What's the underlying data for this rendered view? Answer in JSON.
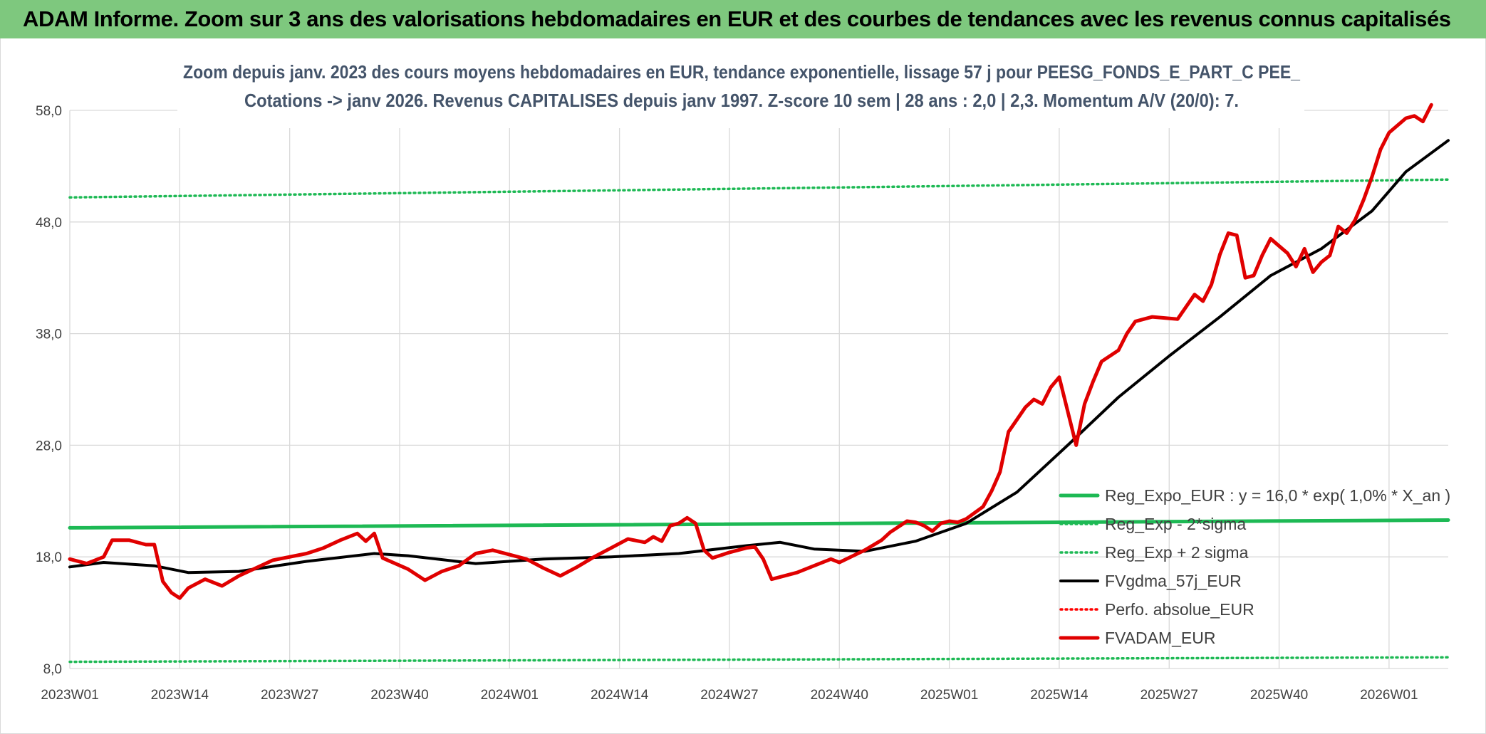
{
  "header": {
    "title": "ADAM Informe. Zoom sur 3 ans des valorisations hebdomadaires en EUR et des courbes de tendances avec les revenus connus capitalisés"
  },
  "chart_data": {
    "type": "line",
    "title_lines": [
      "Zoom depuis janv. 2023 des cours moyens hebdomadaires en EUR, tendance exponentielle, lissage 57 j pour PEESG_FONDS_E_PART_C PEE_",
      "Cotations -> janv 2026. Revenus CAPITALISES depuis janv 1997. Z-score 10 sem | 28 ans : 2,0 | 2,3. Momentum A/V (20/0): 7."
    ],
    "xlabel": "",
    "ylabel": "",
    "ylim": [
      8,
      58
    ],
    "y_ticks": [
      "8,0",
      "18,0",
      "28,0",
      "38,0",
      "48,0",
      "58,0"
    ],
    "x_ticks": [
      "2023W01",
      "2023W14",
      "2023W27",
      "2023W40",
      "2024W01",
      "2024W14",
      "2024W27",
      "2024W40",
      "2025W01",
      "2025W14",
      "2025W27",
      "2025W40",
      "2026W01"
    ],
    "x_count": 164,
    "grid": true,
    "legend_position": "right",
    "series": [
      {
        "name": "Reg_Expo_EUR : y = 16,0 * exp( 1,0% *  X_an )",
        "color": "#1db954",
        "style": "solid-thick",
        "values": [
          [
            0,
            20.6
          ],
          [
            163,
            21.3
          ]
        ]
      },
      {
        "name": "Reg_Exp - 2*sigma",
        "color": "#1db954",
        "style": "dotted",
        "values": [
          [
            0,
            8.6
          ],
          [
            163,
            9.0
          ]
        ]
      },
      {
        "name": "Reg_Exp + 2 sigma",
        "color": "#1db954",
        "style": "dotted",
        "values": [
          [
            0,
            50.2
          ],
          [
            163,
            51.8
          ]
        ]
      },
      {
        "name": "FVgdma_57j_EUR",
        "color": "#000000",
        "style": "solid",
        "values": [
          [
            0,
            17.1
          ],
          [
            4,
            17.5
          ],
          [
            10,
            17.2
          ],
          [
            14,
            16.6
          ],
          [
            20,
            16.7
          ],
          [
            28,
            17.6
          ],
          [
            36,
            18.3
          ],
          [
            40,
            18.1
          ],
          [
            48,
            17.4
          ],
          [
            56,
            17.8
          ],
          [
            64,
            18.0
          ],
          [
            72,
            18.3
          ],
          [
            80,
            19.0
          ],
          [
            84,
            19.3
          ],
          [
            88,
            18.7
          ],
          [
            94,
            18.5
          ],
          [
            100,
            19.4
          ],
          [
            106,
            21.0
          ],
          [
            112,
            23.8
          ],
          [
            118,
            28.0
          ],
          [
            124,
            32.3
          ],
          [
            130,
            36.0
          ],
          [
            136,
            39.5
          ],
          [
            142,
            43.2
          ],
          [
            148,
            45.6
          ],
          [
            154,
            49.0
          ],
          [
            158,
            52.5
          ],
          [
            163,
            55.3
          ]
        ]
      },
      {
        "name": "Perfo. absolue_EUR",
        "color": "#ff0000",
        "style": "dotted",
        "values": []
      },
      {
        "name": "FVADAM_EUR",
        "color": "#e00000",
        "style": "solid-thick",
        "values": [
          [
            0,
            17.8
          ],
          [
            2,
            17.4
          ],
          [
            4,
            18.0
          ],
          [
            5,
            19.5
          ],
          [
            7,
            19.5
          ],
          [
            9,
            19.1
          ],
          [
            10,
            19.1
          ],
          [
            11,
            15.8
          ],
          [
            12,
            14.8
          ],
          [
            13,
            14.3
          ],
          [
            14,
            15.2
          ],
          [
            16,
            16.0
          ],
          [
            18,
            15.4
          ],
          [
            20,
            16.3
          ],
          [
            22,
            17.0
          ],
          [
            24,
            17.7
          ],
          [
            28,
            18.3
          ],
          [
            30,
            18.8
          ],
          [
            32,
            19.5
          ],
          [
            34,
            20.1
          ],
          [
            35,
            19.4
          ],
          [
            36,
            20.1
          ],
          [
            37,
            17.9
          ],
          [
            40,
            16.9
          ],
          [
            42,
            15.9
          ],
          [
            44,
            16.7
          ],
          [
            46,
            17.2
          ],
          [
            48,
            18.3
          ],
          [
            50,
            18.6
          ],
          [
            52,
            18.2
          ],
          [
            54,
            17.8
          ],
          [
            56,
            17.0
          ],
          [
            58,
            16.3
          ],
          [
            60,
            17.1
          ],
          [
            62,
            18.0
          ],
          [
            64,
            18.8
          ],
          [
            66,
            19.6
          ],
          [
            68,
            19.3
          ],
          [
            69,
            19.8
          ],
          [
            70,
            19.4
          ],
          [
            71,
            20.8
          ],
          [
            72,
            21.0
          ],
          [
            73,
            21.5
          ],
          [
            74,
            21.0
          ],
          [
            75,
            18.6
          ],
          [
            76,
            17.9
          ],
          [
            78,
            18.4
          ],
          [
            80,
            18.8
          ],
          [
            81,
            18.9
          ],
          [
            82,
            17.8
          ],
          [
            83,
            16.0
          ],
          [
            86,
            16.6
          ],
          [
            88,
            17.2
          ],
          [
            90,
            17.8
          ],
          [
            91,
            17.5
          ],
          [
            94,
            18.6
          ],
          [
            96,
            19.5
          ],
          [
            97,
            20.2
          ],
          [
            99,
            21.2
          ],
          [
            100,
            21.1
          ],
          [
            101,
            20.8
          ],
          [
            102,
            20.3
          ],
          [
            103,
            21.0
          ],
          [
            104,
            21.2
          ],
          [
            105,
            21.1
          ],
          [
            106,
            21.4
          ],
          [
            108,
            22.5
          ],
          [
            109,
            23.9
          ],
          [
            110,
            25.6
          ],
          [
            111,
            29.2
          ],
          [
            112,
            30.3
          ],
          [
            113,
            31.4
          ],
          [
            114,
            32.1
          ],
          [
            115,
            31.7
          ],
          [
            116,
            33.2
          ],
          [
            117,
            34.1
          ],
          [
            119,
            28.0
          ],
          [
            120,
            31.7
          ],
          [
            121,
            33.7
          ],
          [
            122,
            35.5
          ],
          [
            124,
            36.5
          ],
          [
            125,
            38.0
          ],
          [
            126,
            39.1
          ],
          [
            128,
            39.5
          ],
          [
            131,
            39.3
          ],
          [
            133,
            41.5
          ],
          [
            134,
            40.9
          ],
          [
            135,
            42.4
          ],
          [
            136,
            45.1
          ],
          [
            137,
            47.0
          ],
          [
            138,
            46.8
          ],
          [
            139,
            43.0
          ],
          [
            140,
            43.2
          ],
          [
            141,
            45.0
          ],
          [
            142,
            46.5
          ],
          [
            144,
            45.2
          ],
          [
            145,
            44.0
          ],
          [
            146,
            45.6
          ],
          [
            147,
            43.5
          ],
          [
            148,
            44.4
          ],
          [
            149,
            45.0
          ],
          [
            150,
            47.6
          ],
          [
            151,
            47.0
          ],
          [
            152,
            48.2
          ],
          [
            153,
            50.0
          ],
          [
            154,
            52.1
          ],
          [
            155,
            54.5
          ],
          [
            156,
            56.0
          ],
          [
            158,
            57.3
          ],
          [
            159,
            57.5
          ],
          [
            160,
            57.0
          ],
          [
            161,
            58.5
          ]
        ]
      }
    ]
  }
}
